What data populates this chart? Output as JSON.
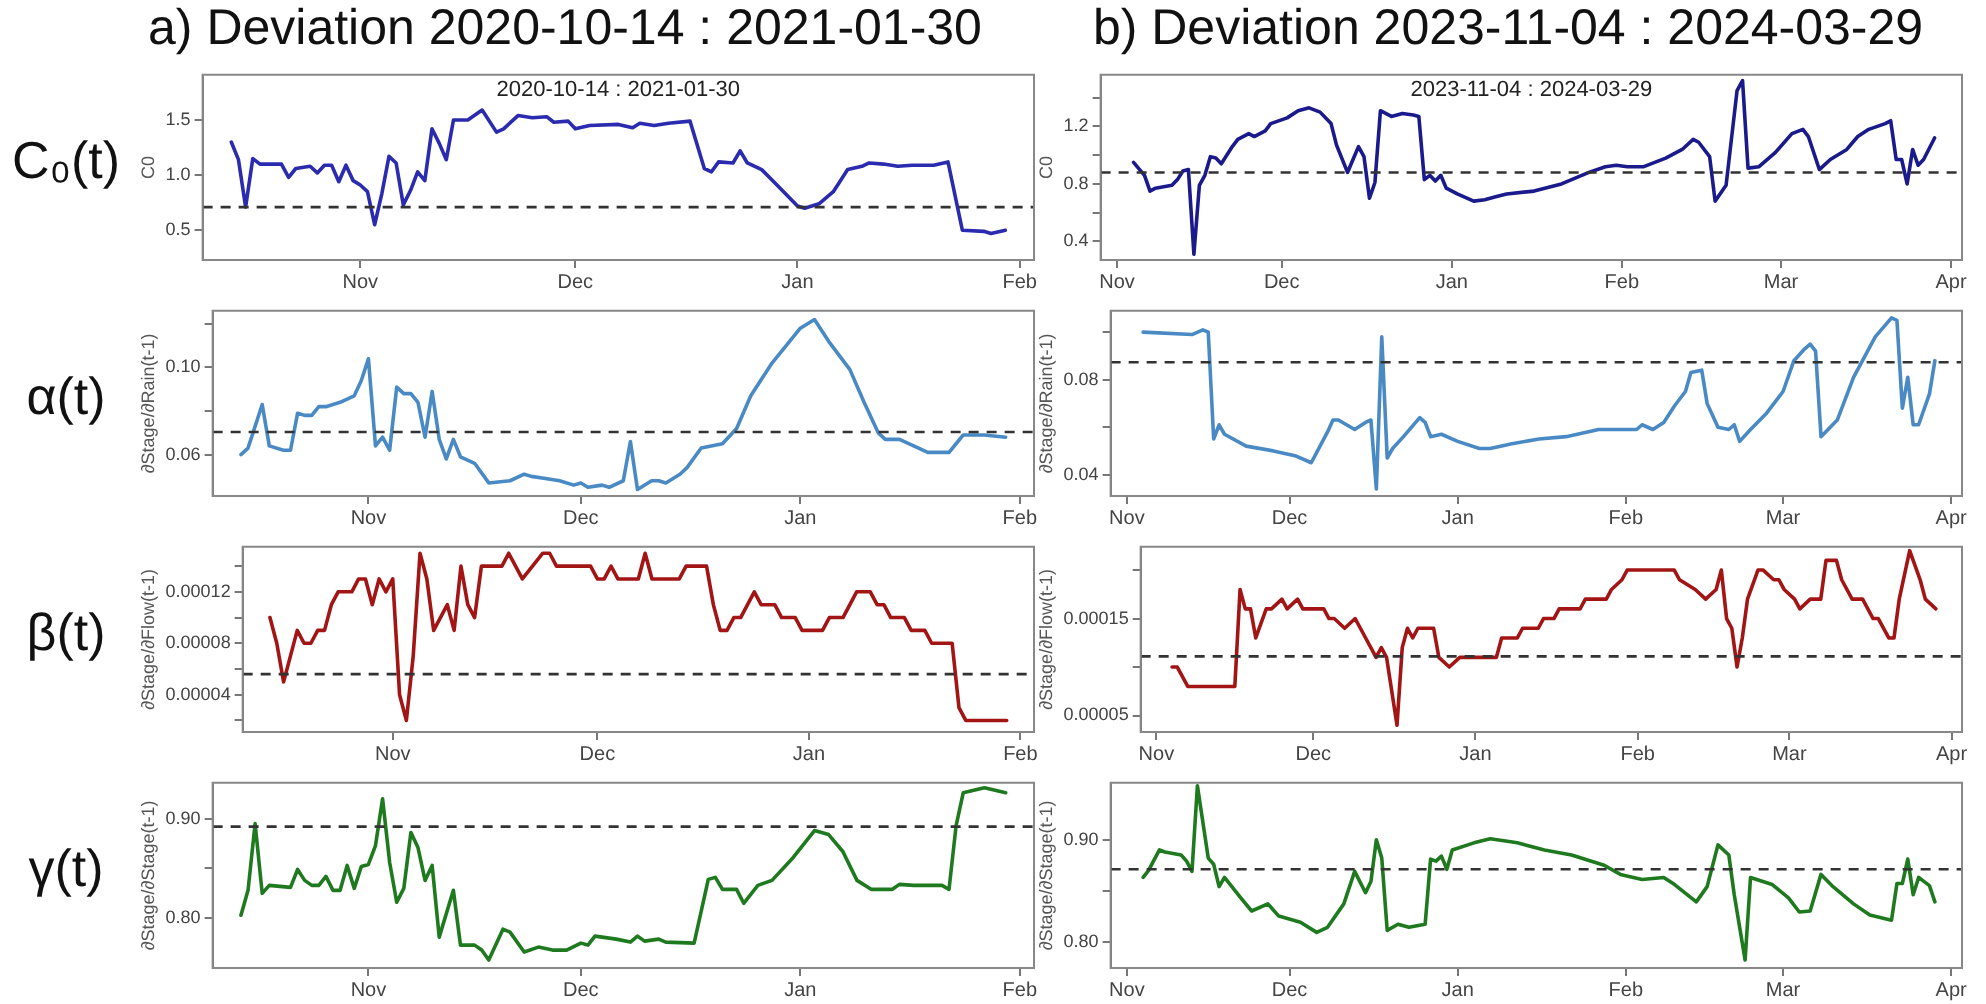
{
  "chart_data": [
    {
      "type": "line",
      "title": "a) Deviation 2020-10-14 : 2021-01-30",
      "subtitle": "2020-10-14 : 2021-01-30",
      "ylabel": "C0",
      "annotations": [
        "C₀(t)"
      ],
      "marker": "none",
      "xlim": [
        "2020-10-10",
        "2021-02-03"
      ],
      "xticks": [
        {
          "value": "2020-11-01",
          "label": "Nov"
        },
        {
          "value": "2020-12-01",
          "label": "Dec"
        },
        {
          "value": "2021-01-01",
          "label": "Jan"
        },
        {
          "value": "2021-02-01",
          "label": "Feb"
        }
      ],
      "ylim": [
        0.23,
        1.91
      ],
      "yticks": [
        0.5,
        {
          "value": 1,
          "label": "1.0"
        },
        1.5
      ],
      "ref_lines": [
        {
          "axis": "y",
          "value": 0.71,
          "color": "#333333",
          "line_style": "dashed"
        }
      ],
      "series": [
        {
          "color": "#2b2bb0",
          "x": [
            "2020-10-14",
            "2020-10-15",
            "2020-10-16",
            "2020-10-17",
            "2020-10-18",
            "2020-10-21",
            "2020-10-22",
            "2020-10-23",
            "2020-10-25",
            "2020-10-26",
            "2020-10-27",
            "2020-10-28",
            "2020-10-29",
            "2020-10-30",
            "2020-10-31",
            "2020-11-01",
            "2020-11-02",
            "2020-11-03",
            "2020-11-04",
            "2020-11-05",
            "2020-11-06",
            "2020-11-07",
            "2020-11-08",
            "2020-11-09",
            "2020-11-10",
            "2020-11-11",
            "2020-11-12",
            "2020-11-13",
            "2020-11-14",
            "2020-11-16",
            "2020-11-18",
            "2020-11-20",
            "2020-11-21",
            "2020-11-23",
            "2020-11-25",
            "2020-11-27",
            "2020-11-28",
            "2020-11-30",
            "2020-12-01",
            "2020-12-03",
            "2020-12-07",
            "2020-12-09",
            "2020-12-10",
            "2020-12-12",
            "2020-12-14",
            "2020-12-17",
            "2020-12-19",
            "2020-12-20",
            "2020-12-21",
            "2020-12-23",
            "2020-12-24",
            "2020-12-25",
            "2020-12-27",
            "2020-12-29",
            "2021-01-01",
            "2021-01-02",
            "2021-01-04",
            "2021-01-06",
            "2021-01-08",
            "2021-01-10",
            "2021-01-11",
            "2021-01-13",
            "2021-01-15",
            "2021-01-17",
            "2021-01-20",
            "2021-01-22",
            "2021-01-24",
            "2021-01-27",
            "2021-01-28",
            "2021-01-30"
          ],
          "values": [
            1.3,
            1.14,
            0.71,
            1.15,
            1.1,
            1.1,
            0.98,
            1.06,
            1.08,
            1.02,
            1.09,
            1.09,
            0.94,
            1.09,
            0.95,
            0.91,
            0.85,
            0.55,
            0.83,
            1.17,
            1.11,
            0.73,
            0.86,
            1.03,
            0.95,
            1.42,
            1.29,
            1.14,
            1.5,
            1.5,
            1.59,
            1.39,
            1.42,
            1.54,
            1.52,
            1.53,
            1.48,
            1.49,
            1.42,
            1.45,
            1.46,
            1.43,
            1.47,
            1.45,
            1.47,
            1.49,
            1.06,
            1.03,
            1.12,
            1.11,
            1.22,
            1.11,
            1.05,
            0.92,
            0.72,
            0.7,
            0.74,
            0.85,
            1.05,
            1.08,
            1.11,
            1.1,
            1.08,
            1.09,
            1.09,
            1.12,
            0.5,
            0.49,
            0.47,
            0.5
          ]
        }
      ]
    },
    {
      "type": "line",
      "ylabel": "∂Stage/∂Rain(t-1)",
      "annotations": [
        "α(t)"
      ],
      "marker": "none",
      "xlim": [
        "2020-10-10",
        "2021-02-03"
      ],
      "xticks": [
        {
          "value": "2020-11-01",
          "label": "Nov"
        },
        {
          "value": "2020-12-01",
          "label": "Dec"
        },
        {
          "value": "2021-01-01",
          "label": "Jan"
        },
        {
          "value": "2021-02-01",
          "label": "Feb"
        }
      ],
      "ylim": [
        0.041,
        0.126
      ],
      "yticks": [
        0.06,
        {
          "value": 0.08,
          "label": null
        },
        {
          "value": 0.1,
          "label": "0.10"
        },
        {
          "value": 0.12,
          "label": null
        }
      ],
      "ref_lines": [
        {
          "axis": "y",
          "value": 0.0704,
          "color": "#333333",
          "line_style": "dashed"
        }
      ],
      "series": [
        {
          "color": "#4a8ac4",
          "x": [
            "2020-10-14",
            "2020-10-15",
            "2020-10-17",
            "2020-10-18",
            "2020-10-20",
            "2020-10-21",
            "2020-10-22",
            "2020-10-23",
            "2020-10-24",
            "2020-10-25",
            "2020-10-26",
            "2020-10-28",
            "2020-10-30",
            "2020-10-31",
            "2020-11-01",
            "2020-11-02",
            "2020-11-03",
            "2020-11-04",
            "2020-11-05",
            "2020-11-06",
            "2020-11-07",
            "2020-11-08",
            "2020-11-09",
            "2020-11-10",
            "2020-11-11",
            "2020-11-12",
            "2020-11-13",
            "2020-11-14",
            "2020-11-16",
            "2020-11-18",
            "2020-11-21",
            "2020-11-23",
            "2020-11-24",
            "2020-11-26",
            "2020-11-28",
            "2020-11-30",
            "2020-12-01",
            "2020-12-02",
            "2020-12-04",
            "2020-12-05",
            "2020-12-07",
            "2020-12-08",
            "2020-12-09",
            "2020-12-11",
            "2020-12-12",
            "2020-12-13",
            "2020-12-15",
            "2020-12-16",
            "2020-12-18",
            "2020-12-21",
            "2020-12-23",
            "2020-12-25",
            "2020-12-28",
            "2020-12-30",
            "2021-01-01",
            "2021-01-03",
            "2021-01-05",
            "2021-01-08",
            "2021-01-10",
            "2021-01-12",
            "2021-01-13",
            "2021-01-15",
            "2021-01-17",
            "2021-01-19",
            "2021-01-22",
            "2021-01-24",
            "2021-01-27",
            "2021-01-30"
          ],
          "values": [
            0.06,
            0.063,
            0.083,
            0.064,
            0.062,
            0.062,
            0.079,
            0.078,
            0.078,
            0.082,
            0.082,
            0.084,
            0.087,
            0.094,
            0.104,
            0.064,
            0.068,
            0.062,
            0.091,
            0.088,
            0.088,
            0.084,
            0.068,
            0.089,
            0.067,
            0.058,
            0.067,
            0.059,
            0.056,
            0.047,
            0.048,
            0.051,
            0.05,
            0.049,
            0.048,
            0.046,
            0.047,
            0.045,
            0.046,
            0.045,
            0.048,
            0.066,
            0.044,
            0.048,
            0.048,
            0.047,
            0.051,
            0.054,
            0.063,
            0.065,
            0.072,
            0.087,
            0.102,
            0.11,
            0.118,
            0.122,
            0.112,
            0.099,
            0.084,
            0.07,
            0.067,
            0.067,
            0.064,
            0.061,
            0.061,
            0.069,
            0.069,
            0.068
          ]
        }
      ]
    },
    {
      "type": "line",
      "ylabel": "∂Stage/∂Flow(t-1)",
      "annotations": [
        "β(t)"
      ],
      "marker": "none",
      "xlim": [
        "2020-10-10",
        "2021-02-03"
      ],
      "xticks": [
        {
          "value": "2020-11-01",
          "label": "Nov"
        },
        {
          "value": "2020-12-01",
          "label": "Dec"
        },
        {
          "value": "2021-01-01",
          "label": "Jan"
        },
        {
          "value": "2021-02-01",
          "label": "Feb"
        }
      ],
      "ylim": [
        1.1e-05,
        0.000155
      ],
      "yticks": [
        {
          "value": 2e-05,
          "label": null
        },
        {
          "value": 4e-05,
          "label": "0.00004"
        },
        {
          "value": 6e-05,
          "label": null
        },
        {
          "value": 8e-05,
          "label": "0.00008"
        },
        {
          "value": 0.0001,
          "label": null
        },
        {
          "value": 0.00012,
          "label": "0.00012"
        },
        {
          "value": 0.00014,
          "label": null
        }
      ],
      "ref_lines": [
        {
          "axis": "y",
          "value": 5.6e-05,
          "color": "#333333",
          "line_style": "dashed"
        }
      ],
      "series": [
        {
          "color": "#a31515",
          "x": [
            "2020-10-14",
            "2020-10-15",
            "2020-10-16",
            "2020-10-18",
            "2020-10-19",
            "2020-10-20",
            "2020-10-21",
            "2020-10-22",
            "2020-10-23",
            "2020-10-24",
            "2020-10-26",
            "2020-10-27",
            "2020-10-28",
            "2020-10-29",
            "2020-10-30",
            "2020-10-31",
            "2020-11-01",
            "2020-11-02",
            "2020-11-03",
            "2020-11-04",
            "2020-11-05",
            "2020-11-06",
            "2020-11-07",
            "2020-11-09",
            "2020-11-10",
            "2020-11-11",
            "2020-11-12",
            "2020-11-13",
            "2020-11-14",
            "2020-11-17",
            "2020-11-18",
            "2020-11-20",
            "2020-11-23",
            "2020-11-24",
            "2020-11-25",
            "2020-11-30",
            "2020-12-01",
            "2020-12-02",
            "2020-12-03",
            "2020-12-04",
            "2020-12-07",
            "2020-12-08",
            "2020-12-09",
            "2020-12-13",
            "2020-12-14",
            "2020-12-17",
            "2020-12-18",
            "2020-12-19",
            "2020-12-20",
            "2020-12-21",
            "2020-12-22",
            "2020-12-24",
            "2020-12-25",
            "2020-12-27",
            "2020-12-28",
            "2020-12-30",
            "2020-12-31",
            "2021-01-03",
            "2021-01-04",
            "2021-01-06",
            "2021-01-08",
            "2021-01-10",
            "2021-01-11",
            "2021-01-12",
            "2021-01-13",
            "2021-01-15",
            "2021-01-16",
            "2021-01-18",
            "2021-01-19",
            "2021-01-22",
            "2021-01-23",
            "2021-01-24",
            "2021-01-30"
          ],
          "values": [
            0.0001,
            8e-05,
            5e-05,
            9e-05,
            8e-05,
            8e-05,
            9e-05,
            9e-05,
            0.00011,
            0.00012,
            0.00012,
            0.00013,
            0.00013,
            0.00011,
            0.00013,
            0.00012,
            0.00013,
            4e-05,
            2e-05,
            7e-05,
            0.00015,
            0.00013,
            9e-05,
            0.00011,
            9e-05,
            0.00014,
            0.00011,
            0.0001,
            0.00014,
            0.00014,
            0.00015,
            0.00013,
            0.00015,
            0.00015,
            0.00014,
            0.00014,
            0.00013,
            0.00013,
            0.00014,
            0.00013,
            0.00013,
            0.00015,
            0.00013,
            0.00013,
            0.00014,
            0.00014,
            0.00011,
            9e-05,
            9e-05,
            0.0001,
            0.0001,
            0.00012,
            0.00011,
            0.00011,
            0.0001,
            0.0001,
            9e-05,
            9e-05,
            0.0001,
            0.0001,
            0.00012,
            0.00012,
            0.00011,
            0.00011,
            0.0001,
            0.0001,
            9e-05,
            9e-05,
            8e-05,
            8e-05,
            3e-05,
            2e-05,
            2e-05
          ]
        }
      ]
    },
    {
      "type": "line",
      "ylabel": "∂Stage/∂Stage(t-1)",
      "annotations": [
        "γ(t)"
      ],
      "marker": "none",
      "xlim": [
        "2020-10-10",
        "2021-02-03"
      ],
      "xticks": [
        {
          "value": "2020-11-01",
          "label": "Nov"
        },
        {
          "value": "2020-12-01",
          "label": "Dec"
        },
        {
          "value": "2021-01-01",
          "label": "Jan"
        },
        {
          "value": "2021-02-01",
          "label": "Feb"
        }
      ],
      "ylim": [
        0.75,
        0.936
      ],
      "yticks": [
        {
          "value": 0.8,
          "label": "0.80"
        },
        {
          "value": 0.85,
          "label": null
        },
        {
          "value": 0.9,
          "label": "0.90"
        }
      ],
      "ref_lines": [
        {
          "axis": "y",
          "value": 0.892,
          "color": "#333333",
          "line_style": "dashed"
        }
      ],
      "series": [
        {
          "color": "#1f7a1f",
          "x": [
            "2020-10-14",
            "2020-10-15",
            "2020-10-16",
            "2020-10-17",
            "2020-10-18",
            "2020-10-21",
            "2020-10-22",
            "2020-10-23",
            "2020-10-24",
            "2020-10-25",
            "2020-10-26",
            "2020-10-27",
            "2020-10-28",
            "2020-10-29",
            "2020-10-30",
            "2020-10-31",
            "2020-11-01",
            "2020-11-02",
            "2020-11-03",
            "2020-11-04",
            "2020-11-05",
            "2020-11-06",
            "2020-11-07",
            "2020-11-08",
            "2020-11-09",
            "2020-11-10",
            "2020-11-11",
            "2020-11-13",
            "2020-11-14",
            "2020-11-16",
            "2020-11-17",
            "2020-11-18",
            "2020-11-20",
            "2020-11-21",
            "2020-11-23",
            "2020-11-25",
            "2020-11-27",
            "2020-11-29",
            "2020-12-01",
            "2020-12-02",
            "2020-12-03",
            "2020-12-06",
            "2020-12-08",
            "2020-12-09",
            "2020-12-10",
            "2020-12-12",
            "2020-12-13",
            "2020-12-17",
            "2020-12-19",
            "2020-12-20",
            "2020-12-21",
            "2020-12-23",
            "2020-12-24",
            "2020-12-25",
            "2020-12-26",
            "2020-12-28",
            "2020-12-31",
            "2021-01-03",
            "2021-01-05",
            "2021-01-07",
            "2021-01-09",
            "2021-01-11",
            "2021-01-14",
            "2021-01-15",
            "2021-01-17",
            "2021-01-21",
            "2021-01-22",
            "2021-01-23",
            "2021-01-24",
            "2021-01-27",
            "2021-01-30"
          ],
          "values": [
            0.803,
            0.828,
            0.895,
            0.825,
            0.833,
            0.831,
            0.849,
            0.838,
            0.833,
            0.833,
            0.842,
            0.828,
            0.828,
            0.853,
            0.83,
            0.852,
            0.854,
            0.873,
            0.92,
            0.856,
            0.816,
            0.83,
            0.886,
            0.871,
            0.838,
            0.853,
            0.781,
            0.828,
            0.773,
            0.773,
            0.768,
            0.758,
            0.789,
            0.786,
            0.766,
            0.771,
            0.768,
            0.768,
            0.775,
            0.773,
            0.782,
            0.779,
            0.776,
            0.782,
            0.777,
            0.779,
            0.776,
            0.775,
            0.839,
            0.841,
            0.829,
            0.829,
            0.815,
            0.824,
            0.833,
            0.838,
            0.861,
            0.888,
            0.884,
            0.867,
            0.838,
            0.829,
            0.829,
            0.834,
            0.833,
            0.833,
            0.829,
            0.893,
            0.926,
            0.931,
            0.926
          ]
        }
      ]
    },
    {
      "type": "line",
      "title": "b) Deviation 2023-11-04 : 2024-03-29",
      "subtitle": "2023-11-04 : 2024-03-29",
      "ylabel": "C0",
      "marker": "none",
      "xlim": [
        "2023-10-29",
        "2024-04-03"
      ],
      "xticks": [
        {
          "value": "2023-11-01",
          "label": "Nov"
        },
        {
          "value": "2023-12-01",
          "label": "Dec"
        },
        {
          "value": "2024-01-01",
          "label": "Jan"
        },
        {
          "value": "2024-02-01",
          "label": "Feb"
        },
        {
          "value": "2024-03-01",
          "label": "Mar"
        },
        {
          "value": "2024-04-01",
          "label": "Apr"
        }
      ],
      "ylim": [
        0.27,
        1.56
      ],
      "yticks": [
        0.4,
        {
          "value": 0.6,
          "label": null
        },
        0.8,
        {
          "value": 1,
          "label": null
        },
        1.2,
        {
          "value": 1.4,
          "label": null
        }
      ],
      "ref_lines": [
        {
          "axis": "y",
          "value": 0.88,
          "color": "#333333",
          "line_style": "dashed"
        }
      ],
      "series": [
        {
          "color": "#1a1a8c",
          "x": [
            "2023-11-04",
            "2023-11-06",
            "2023-11-07",
            "2023-11-08",
            "2023-11-11",
            "2023-11-12",
            "2023-11-13",
            "2023-11-14",
            "2023-11-15",
            "2023-11-16",
            "2023-11-17",
            "2023-11-18",
            "2023-11-19",
            "2023-11-20",
            "2023-11-22",
            "2023-11-23",
            "2023-11-25",
            "2023-11-26",
            "2023-11-28",
            "2023-11-29",
            "2023-12-02",
            "2023-12-04",
            "2023-12-06",
            "2023-12-08",
            "2023-12-10",
            "2023-12-11",
            "2023-12-13",
            "2023-12-14",
            "2023-12-15",
            "2023-12-16",
            "2023-12-17",
            "2023-12-18",
            "2023-12-19",
            "2023-12-21",
            "2023-12-23",
            "2023-12-25",
            "2023-12-26",
            "2023-12-27",
            "2023-12-28",
            "2023-12-29",
            "2023-12-30",
            "2023-12-31",
            "2024-01-02",
            "2024-01-05",
            "2024-01-07",
            "2024-01-09",
            "2024-01-11",
            "2024-01-16",
            "2024-01-21",
            "2024-01-26",
            "2024-01-29",
            "2024-01-31",
            "2024-02-02",
            "2024-02-05",
            "2024-02-09",
            "2024-02-12",
            "2024-02-14",
            "2024-02-15",
            "2024-02-17",
            "2024-02-18",
            "2024-02-20",
            "2024-02-22",
            "2024-02-23",
            "2024-02-24",
            "2024-02-26",
            "2024-02-29",
            "2024-03-03",
            "2024-03-05",
            "2024-03-06",
            "2024-03-08",
            "2024-03-10",
            "2024-03-13",
            "2024-03-15",
            "2024-03-17",
            "2024-03-20",
            "2024-03-21",
            "2024-03-22",
            "2024-03-23",
            "2024-03-24",
            "2024-03-25",
            "2024-03-26",
            "2024-03-27",
            "2024-03-29"
          ],
          "values": [
            0.95,
            0.86,
            0.75,
            0.77,
            0.79,
            0.83,
            0.89,
            0.9,
            0.31,
            0.79,
            0.86,
            0.99,
            0.98,
            0.94,
            1.06,
            1.11,
            1.15,
            1.13,
            1.17,
            1.22,
            1.26,
            1.31,
            1.33,
            1.3,
            1.22,
            1.07,
            0.88,
            0.97,
            1.06,
            0.99,
            0.7,
            0.81,
            1.31,
            1.27,
            1.29,
            1.28,
            1.27,
            0.83,
            0.86,
            0.82,
            0.86,
            0.77,
            0.73,
            0.68,
            0.69,
            0.71,
            0.73,
            0.75,
            0.8,
            0.88,
            0.92,
            0.93,
            0.92,
            0.92,
            0.98,
            1.04,
            1.11,
            1.09,
            0.99,
            0.68,
            0.79,
            1.45,
            1.52,
            0.91,
            0.92,
            1.02,
            1.15,
            1.18,
            1.13,
            0.9,
            0.97,
            1.04,
            1.13,
            1.18,
            1.22,
            1.24,
            0.97,
            0.97,
            0.8,
            1.04,
            0.93,
            0.97,
            1.12
          ]
        }
      ]
    },
    {
      "type": "line",
      "ylabel": "∂Stage/∂Rain(t-1)",
      "marker": "none",
      "xlim": [
        "2023-10-29",
        "2024-04-03"
      ],
      "xticks": [
        {
          "value": "2023-11-01",
          "label": "Nov"
        },
        {
          "value": "2023-12-01",
          "label": "Dec"
        },
        {
          "value": "2024-01-01",
          "label": "Jan"
        },
        {
          "value": "2024-02-01",
          "label": "Feb"
        },
        {
          "value": "2024-03-01",
          "label": "Mar"
        },
        {
          "value": "2024-04-01",
          "label": "Apr"
        }
      ],
      "ylim": [
        0.031,
        0.109
      ],
      "yticks": [
        0.04,
        {
          "value": 0.06,
          "label": null
        },
        0.08,
        {
          "value": 0.1,
          "label": null
        }
      ],
      "ref_lines": [
        {
          "axis": "y",
          "value": 0.0873,
          "color": "#333333",
          "line_style": "dashed"
        }
      ],
      "series": [
        {
          "color": "#4a8ac4",
          "x": [
            "2023-11-04",
            "2023-11-13",
            "2023-11-15",
            "2023-11-16",
            "2023-11-17",
            "2023-11-18",
            "2023-11-19",
            "2023-11-23",
            "2023-11-28",
            "2023-12-02",
            "2023-12-05",
            "2023-12-08",
            "2023-12-09",
            "2023-12-10",
            "2023-12-13",
            "2023-12-15",
            "2023-12-16",
            "2023-12-17",
            "2023-12-18",
            "2023-12-19",
            "2023-12-20",
            "2023-12-22",
            "2023-12-25",
            "2023-12-26",
            "2023-12-27",
            "2023-12-29",
            "2024-01-01",
            "2024-01-05",
            "2024-01-07",
            "2024-01-11",
            "2024-01-16",
            "2024-01-21",
            "2024-01-27",
            "2024-02-03",
            "2024-02-04",
            "2024-02-06",
            "2024-02-08",
            "2024-02-10",
            "2024-02-12",
            "2024-02-13",
            "2024-02-15",
            "2024-02-16",
            "2024-02-18",
            "2024-02-20",
            "2024-02-21",
            "2024-02-22",
            "2024-02-24",
            "2024-02-27",
            "2024-03-01",
            "2024-03-03",
            "2024-03-05",
            "2024-03-06",
            "2024-03-07",
            "2024-03-08",
            "2024-03-11",
            "2024-03-14",
            "2024-03-18",
            "2024-03-21",
            "2024-03-22",
            "2024-03-23",
            "2024-03-24",
            "2024-03-25",
            "2024-03-26",
            "2024-03-28",
            "2024-03-29"
          ],
          "values": [
            0.1,
            0.099,
            0.101,
            0.1,
            0.055,
            0.061,
            0.057,
            0.052,
            0.05,
            0.048,
            0.045,
            0.058,
            0.063,
            0.063,
            0.059,
            0.062,
            0.063,
            0.034,
            0.098,
            0.047,
            0.051,
            0.056,
            0.064,
            0.062,
            0.056,
            0.057,
            0.054,
            0.051,
            0.051,
            0.053,
            0.055,
            0.056,
            0.059,
            0.059,
            0.061,
            0.059,
            0.062,
            0.069,
            0.075,
            0.083,
            0.084,
            0.07,
            0.06,
            0.059,
            0.061,
            0.054,
            0.059,
            0.066,
            0.075,
            0.088,
            0.093,
            0.095,
            0.092,
            0.056,
            0.063,
            0.081,
            0.098,
            0.106,
            0.105,
            0.068,
            0.081,
            0.061,
            0.061,
            0.074,
            0.088
          ]
        }
      ]
    },
    {
      "type": "line",
      "ylabel": "∂Stage/∂Flow(t-1)",
      "marker": "none",
      "xlim": [
        "2023-10-29",
        "2024-04-03"
      ],
      "xticks": [
        {
          "value": "2023-11-01",
          "label": "Nov"
        },
        {
          "value": "2023-12-01",
          "label": "Dec"
        },
        {
          "value": "2024-01-01",
          "label": "Jan"
        },
        {
          "value": "2024-02-01",
          "label": "Feb"
        },
        {
          "value": "2024-03-01",
          "label": "Mar"
        },
        {
          "value": "2024-04-01",
          "label": "Apr"
        }
      ],
      "ylim": [
        3.3e-05,
        0.000224
      ],
      "yticks": [
        {
          "value": 5e-05,
          "label": "0.00005"
        },
        {
          "value": 0.0001,
          "label": null
        },
        {
          "value": 0.00015,
          "label": "0.00015"
        },
        {
          "value": 0.0002,
          "label": null
        }
      ],
      "ref_lines": [
        {
          "axis": "y",
          "value": 0.000111,
          "color": "#333333",
          "line_style": "dashed"
        }
      ],
      "series": [
        {
          "color": "#a31515",
          "x": [
            "2023-11-04",
            "2023-11-05",
            "2023-11-07",
            "2023-11-16",
            "2023-11-17",
            "2023-11-18",
            "2023-11-19",
            "2023-11-20",
            "2023-11-22",
            "2023-11-23",
            "2023-11-25",
            "2023-11-26",
            "2023-11-28",
            "2023-11-29",
            "2023-12-03",
            "2023-12-04",
            "2023-12-05",
            "2023-12-07",
            "2023-12-09",
            "2023-12-10",
            "2023-12-13",
            "2023-12-14",
            "2023-12-15",
            "2023-12-17",
            "2023-12-18",
            "2023-12-19",
            "2023-12-20",
            "2023-12-21",
            "2023-12-24",
            "2023-12-25",
            "2023-12-27",
            "2023-12-29",
            "2024-01-01",
            "2024-01-05",
            "2024-01-06",
            "2024-01-09",
            "2024-01-10",
            "2024-01-13",
            "2024-01-14",
            "2024-01-16",
            "2024-01-17",
            "2024-01-21",
            "2024-01-22",
            "2024-01-26",
            "2024-01-27",
            "2024-01-29",
            "2024-01-30",
            "2024-02-08",
            "2024-02-09",
            "2024-02-12",
            "2024-02-14",
            "2024-02-16",
            "2024-02-17",
            "2024-02-18",
            "2024-02-19",
            "2024-02-20",
            "2024-02-21",
            "2024-02-22",
            "2024-02-24",
            "2024-02-25",
            "2024-02-27",
            "2024-02-28",
            "2024-02-29",
            "2024-03-02",
            "2024-03-03",
            "2024-03-05",
            "2024-03-07",
            "2024-03-08",
            "2024-03-10",
            "2024-03-11",
            "2024-03-13",
            "2024-03-15",
            "2024-03-17",
            "2024-03-18",
            "2024-03-20",
            "2024-03-21",
            "2024-03-22",
            "2024-03-24",
            "2024-03-26",
            "2024-03-27",
            "2024-03-29"
          ],
          "values": [
            0.0001,
            0.0001,
            8e-05,
            8e-05,
            0.00018,
            0.00016,
            0.00016,
            0.00013,
            0.00016,
            0.00016,
            0.00017,
            0.00016,
            0.00017,
            0.00016,
            0.00016,
            0.00015,
            0.00015,
            0.00014,
            0.00015,
            0.00014,
            0.00011,
            0.00012,
            0.00011,
            4e-05,
            0.00012,
            0.00014,
            0.00013,
            0.00014,
            0.00014,
            0.00011,
            0.0001,
            0.00011,
            0.00011,
            0.00011,
            0.00013,
            0.00013,
            0.00014,
            0.00014,
            0.00015,
            0.00015,
            0.00016,
            0.00016,
            0.00017,
            0.00017,
            0.00018,
            0.00019,
            0.0002,
            0.0002,
            0.00019,
            0.00018,
            0.00017,
            0.00018,
            0.0002,
            0.00015,
            0.00014,
            0.0001,
            0.00013,
            0.00017,
            0.0002,
            0.0002,
            0.00019,
            0.00019,
            0.00018,
            0.00017,
            0.00016,
            0.00017,
            0.00017,
            0.00021,
            0.00021,
            0.00019,
            0.00017,
            0.00017,
            0.00015,
            0.00015,
            0.00013,
            0.00013,
            0.00017,
            0.00022,
            0.00019,
            0.00017,
            0.00016
          ]
        }
      ]
    },
    {
      "type": "line",
      "ylabel": "∂Stage/∂Stage(t-1)",
      "marker": "none",
      "xlim": [
        "2023-10-29",
        "2024-04-03"
      ],
      "xticks": [
        {
          "value": "2023-11-01",
          "label": "Nov"
        },
        {
          "value": "2023-12-01",
          "label": "Dec"
        },
        {
          "value": "2024-01-01",
          "label": "Jan"
        },
        {
          "value": "2024-02-01",
          "label": "Feb"
        },
        {
          "value": "2024-03-01",
          "label": "Mar"
        },
        {
          "value": "2024-04-01",
          "label": "Apr"
        }
      ],
      "ylim": [
        0.774,
        0.956
      ],
      "yticks": [
        {
          "value": 0.8,
          "label": "0.80"
        },
        {
          "value": 0.85,
          "label": null
        },
        {
          "value": 0.9,
          "label": "0.90"
        }
      ],
      "ref_lines": [
        {
          "axis": "y",
          "value": 0.871,
          "color": "#333333",
          "line_style": "dashed"
        }
      ],
      "series": [
        {
          "color": "#1f7a1f",
          "x": [
            "2023-11-04",
            "2023-11-05",
            "2023-11-07",
            "2023-11-08",
            "2023-11-11",
            "2023-11-12",
            "2023-11-13",
            "2023-11-14",
            "2023-11-16",
            "2023-11-17",
            "2023-11-18",
            "2023-11-19",
            "2023-11-22",
            "2023-11-24",
            "2023-11-27",
            "2023-11-29",
            "2023-12-03",
            "2023-12-06",
            "2023-12-08",
            "2023-12-11",
            "2023-12-13",
            "2023-12-15",
            "2023-12-16",
            "2023-12-17",
            "2023-12-18",
            "2023-12-19",
            "2023-12-21",
            "2023-12-23",
            "2023-12-25",
            "2023-12-26",
            "2023-12-27",
            "2023-12-28",
            "2023-12-29",
            "2023-12-30",
            "2023-12-31",
            "2024-01-04",
            "2024-01-07",
            "2024-01-12",
            "2024-01-17",
            "2024-01-22",
            "2024-01-28",
            "2024-01-31",
            "2024-02-04",
            "2024-02-08",
            "2024-02-10",
            "2024-02-14",
            "2024-02-16",
            "2024-02-18",
            "2024-02-20",
            "2024-02-21",
            "2024-02-23",
            "2024-02-24",
            "2024-02-28",
            "2024-03-02",
            "2024-03-04",
            "2024-03-06",
            "2024-03-08",
            "2024-03-10",
            "2024-03-14",
            "2024-03-17",
            "2024-03-21",
            "2024-03-22",
            "2024-03-23",
            "2024-03-24",
            "2024-03-25",
            "2024-03-26",
            "2024-03-28",
            "2024-03-29"
          ],
          "values": [
            0.863,
            0.87,
            0.89,
            0.888,
            0.885,
            0.879,
            0.869,
            0.953,
            0.882,
            0.876,
            0.854,
            0.863,
            0.843,
            0.83,
            0.837,
            0.825,
            0.819,
            0.809,
            0.814,
            0.837,
            0.869,
            0.848,
            0.859,
            0.9,
            0.882,
            0.811,
            0.817,
            0.814,
            0.816,
            0.817,
            0.881,
            0.879,
            0.884,
            0.871,
            0.89,
            0.897,
            0.901,
            0.897,
            0.89,
            0.885,
            0.875,
            0.866,
            0.861,
            0.863,
            0.856,
            0.839,
            0.854,
            0.895,
            0.885,
            0.846,
            0.782,
            0.863,
            0.856,
            0.843,
            0.829,
            0.83,
            0.866,
            0.855,
            0.837,
            0.826,
            0.821,
            0.857,
            0.857,
            0.881,
            0.846,
            0.863,
            0.855,
            0.839
          ]
        }
      ]
    }
  ]
}
